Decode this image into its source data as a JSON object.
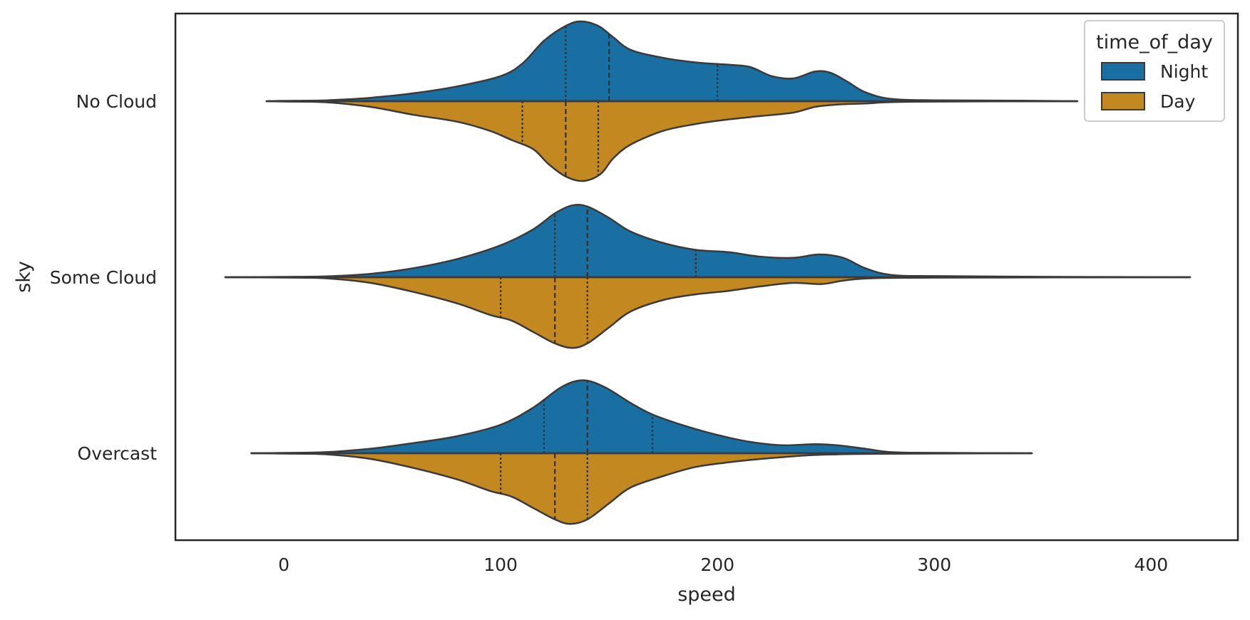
{
  "chart_data": {
    "type": "violin",
    "split": true,
    "orientation": "horizontal",
    "title": "",
    "xlabel": "speed",
    "ylabel": "sky",
    "xlim": [
      -50,
      440
    ],
    "xticks": [
      0,
      100,
      200,
      300,
      400
    ],
    "categories": [
      "No Cloud",
      "Some Cloud",
      "Overcast"
    ],
    "grid": false,
    "legend": {
      "title": "time_of_day",
      "placement": "top-right",
      "entries": [
        {
          "name": "Night",
          "color": "#1a6fa2"
        },
        {
          "name": "Day",
          "color": "#c38820"
        }
      ]
    },
    "series": [
      {
        "name": "Night",
        "color": "#1a6fa2",
        "side": "upper",
        "violins": [
          {
            "category": "No Cloud",
            "range": [
              -8,
              366
            ],
            "quartiles": [
              130,
              150,
              200
            ],
            "density": [
              [
                -8,
                0
              ],
              [
                0,
                0.003
              ],
              [
                20,
                0.008
              ],
              [
                40,
                0.03
              ],
              [
                60,
                0.07
              ],
              [
                80,
                0.13
              ],
              [
                100,
                0.22
              ],
              [
                110,
                0.33
              ],
              [
                120,
                0.53
              ],
              [
                130,
                0.66
              ],
              [
                137,
                0.7
              ],
              [
                145,
                0.66
              ],
              [
                152,
                0.56
              ],
              [
                160,
                0.45
              ],
              [
                175,
                0.38
              ],
              [
                190,
                0.34
              ],
              [
                205,
                0.32
              ],
              [
                215,
                0.3
              ],
              [
                225,
                0.22
              ],
              [
                235,
                0.2
              ],
              [
                245,
                0.26
              ],
              [
                252,
                0.25
              ],
              [
                260,
                0.17
              ],
              [
                268,
                0.08
              ],
              [
                280,
                0.02
              ],
              [
                300,
                0.008
              ],
              [
                340,
                0.005
              ],
              [
                366,
                0
              ]
            ]
          },
          {
            "category": "Some Cloud",
            "range": [
              -27,
              418
            ],
            "quartiles": [
              125,
              140,
              190
            ],
            "density": [
              [
                -27,
                0
              ],
              [
                0,
                0.003
              ],
              [
                20,
                0.008
              ],
              [
                40,
                0.03
              ],
              [
                60,
                0.08
              ],
              [
                80,
                0.16
              ],
              [
                100,
                0.28
              ],
              [
                115,
                0.42
              ],
              [
                125,
                0.56
              ],
              [
                133,
                0.63
              ],
              [
                140,
                0.62
              ],
              [
                150,
                0.52
              ],
              [
                160,
                0.4
              ],
              [
                175,
                0.3
              ],
              [
                190,
                0.24
              ],
              [
                205,
                0.22
              ],
              [
                220,
                0.18
              ],
              [
                235,
                0.17
              ],
              [
                247,
                0.2
              ],
              [
                258,
                0.17
              ],
              [
                268,
                0.08
              ],
              [
                280,
                0.02
              ],
              [
                300,
                0.01
              ],
              [
                350,
                0.004
              ],
              [
                418,
                0
              ]
            ]
          },
          {
            "category": "Overcast",
            "range": [
              -15,
              345
            ],
            "quartiles": [
              120,
              140,
              170
            ],
            "density": [
              [
                -15,
                0
              ],
              [
                0,
                0.003
              ],
              [
                20,
                0.01
              ],
              [
                40,
                0.04
              ],
              [
                60,
                0.09
              ],
              [
                80,
                0.15
              ],
              [
                100,
                0.25
              ],
              [
                115,
                0.4
              ],
              [
                128,
                0.58
              ],
              [
                138,
                0.64
              ],
              [
                148,
                0.58
              ],
              [
                160,
                0.44
              ],
              [
                170,
                0.34
              ],
              [
                185,
                0.24
              ],
              [
                200,
                0.16
              ],
              [
                215,
                0.1
              ],
              [
                230,
                0.07
              ],
              [
                245,
                0.08
              ],
              [
                255,
                0.07
              ],
              [
                268,
                0.04
              ],
              [
                280,
                0.01
              ],
              [
                300,
                0.004
              ],
              [
                345,
                0
              ]
            ]
          }
        ]
      },
      {
        "name": "Day",
        "color": "#c38820",
        "side": "lower",
        "violins": [
          {
            "category": "No Cloud",
            "range": [
              -8,
              366
            ],
            "quartiles": [
              110,
              130,
              145
            ],
            "density": [
              [
                -8,
                0
              ],
              [
                0,
                0.003
              ],
              [
                20,
                0.01
              ],
              [
                40,
                0.05
              ],
              [
                60,
                0.12
              ],
              [
                80,
                0.18
              ],
              [
                95,
                0.26
              ],
              [
                105,
                0.34
              ],
              [
                115,
                0.42
              ],
              [
                122,
                0.55
              ],
              [
                130,
                0.66
              ],
              [
                138,
                0.7
              ],
              [
                146,
                0.64
              ],
              [
                152,
                0.5
              ],
              [
                160,
                0.38
              ],
              [
                175,
                0.26
              ],
              [
                190,
                0.2
              ],
              [
                205,
                0.16
              ],
              [
                220,
                0.13
              ],
              [
                235,
                0.1
              ],
              [
                245,
                0.05
              ],
              [
                255,
                0.03
              ],
              [
                268,
                0.02
              ],
              [
                290,
                0.005
              ],
              [
                366,
                0
              ]
            ]
          },
          {
            "category": "Some Cloud",
            "range": [
              -27,
              418
            ],
            "quartiles": [
              100,
              125,
              140
            ],
            "density": [
              [
                -27,
                0
              ],
              [
                0,
                0.003
              ],
              [
                20,
                0.01
              ],
              [
                40,
                0.05
              ],
              [
                60,
                0.13
              ],
              [
                80,
                0.23
              ],
              [
                95,
                0.33
              ],
              [
                105,
                0.38
              ],
              [
                115,
                0.48
              ],
              [
                125,
                0.58
              ],
              [
                133,
                0.62
              ],
              [
                140,
                0.58
              ],
              [
                150,
                0.44
              ],
              [
                160,
                0.3
              ],
              [
                175,
                0.2
              ],
              [
                190,
                0.15
              ],
              [
                205,
                0.12
              ],
              [
                220,
                0.08
              ],
              [
                235,
                0.05
              ],
              [
                248,
                0.06
              ],
              [
                258,
                0.03
              ],
              [
                270,
                0.01
              ],
              [
                300,
                0.004
              ],
              [
                418,
                0
              ]
            ]
          },
          {
            "category": "Overcast",
            "range": [
              -15,
              345
            ],
            "quartiles": [
              100,
              125,
              140
            ],
            "density": [
              [
                -15,
                0
              ],
              [
                0,
                0.003
              ],
              [
                20,
                0.01
              ],
              [
                40,
                0.05
              ],
              [
                60,
                0.13
              ],
              [
                80,
                0.23
              ],
              [
                95,
                0.33
              ],
              [
                105,
                0.38
              ],
              [
                115,
                0.48
              ],
              [
                125,
                0.58
              ],
              [
                132,
                0.62
              ],
              [
                140,
                0.58
              ],
              [
                150,
                0.44
              ],
              [
                160,
                0.3
              ],
              [
                175,
                0.2
              ],
              [
                190,
                0.12
              ],
              [
                205,
                0.08
              ],
              [
                220,
                0.05
              ],
              [
                240,
                0.02
              ],
              [
                255,
                0.01
              ],
              [
                275,
                0.005
              ],
              [
                345,
                0
              ]
            ]
          }
        ]
      }
    ]
  }
}
